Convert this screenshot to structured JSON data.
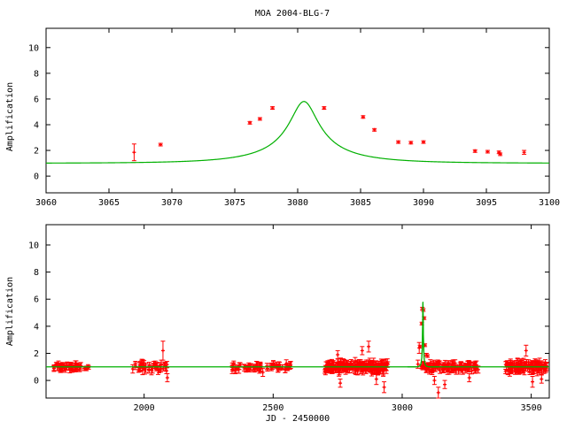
{
  "title": "MOA 2004-BLG-7",
  "colors": {
    "data": "#ff0000",
    "model": "#00b000",
    "axes": "#000000"
  },
  "chart_data": [
    {
      "type": "scatter",
      "panel": "zoom",
      "xlabel": "",
      "ylabel": "Amplification",
      "xlim": [
        3060,
        3100
      ],
      "ylim": [
        -1.3,
        11.5
      ],
      "xticks": [
        "3060",
        "3065",
        "3070",
        "3075",
        "3080",
        "3085",
        "3090",
        "3095",
        "3100"
      ],
      "yticks": [
        "0",
        "2",
        "4",
        "6",
        "8",
        "10"
      ],
      "grid": false,
      "points": [
        {
          "x": 3067.0,
          "y": 1.85,
          "err": 0.65
        },
        {
          "x": 3069.1,
          "y": 2.45,
          "err": 0.1
        },
        {
          "x": 3076.2,
          "y": 4.15,
          "err": 0.1
        },
        {
          "x": 3077.0,
          "y": 4.45,
          "err": 0.1
        },
        {
          "x": 3078.0,
          "y": 5.3,
          "err": 0.1
        },
        {
          "x": 3082.1,
          "y": 5.3,
          "err": 0.1
        },
        {
          "x": 3085.2,
          "y": 4.6,
          "err": 0.1
        },
        {
          "x": 3086.1,
          "y": 3.6,
          "err": 0.1
        },
        {
          "x": 3088.0,
          "y": 2.65,
          "err": 0.1
        },
        {
          "x": 3089.0,
          "y": 2.6,
          "err": 0.1
        },
        {
          "x": 3090.0,
          "y": 2.65,
          "err": 0.1
        },
        {
          "x": 3094.1,
          "y": 1.95,
          "err": 0.1
        },
        {
          "x": 3095.1,
          "y": 1.9,
          "err": 0.1
        },
        {
          "x": 3096.0,
          "y": 1.85,
          "err": 0.1
        },
        {
          "x": 3096.1,
          "y": 1.7,
          "err": 0.1
        },
        {
          "x": 3098.0,
          "y": 1.85,
          "err": 0.15
        }
      ],
      "model": {
        "t0": 3080.5,
        "tE": 6.66,
        "u0": 0.1742
      }
    },
    {
      "type": "scatter",
      "panel": "full",
      "xlabel": "JD - 2450000",
      "ylabel": "Amplification",
      "xlim": [
        1620,
        3570
      ],
      "ylim": [
        -1.3,
        11.5
      ],
      "xticks": [
        "2000",
        "2500",
        "3000",
        "3500"
      ],
      "yticks": [
        "0",
        "2",
        "4",
        "6",
        "8",
        "10"
      ],
      "grid": false,
      "seasons": [
        {
          "from": 1650,
          "to": 1755,
          "n": 50,
          "spread": 0.25,
          "err": 0.25
        },
        {
          "from": 1765,
          "to": 1790,
          "n": 6,
          "spread": 0.15,
          "err": 0.15
        },
        {
          "from": 1950,
          "to": 2090,
          "n": 40,
          "spread": 0.3,
          "err": 0.3
        },
        {
          "from": 2340,
          "to": 2570,
          "n": 70,
          "spread": 0.25,
          "err": 0.25
        },
        {
          "from": 2700,
          "to": 2945,
          "n": 180,
          "spread": 0.35,
          "err": 0.3
        },
        {
          "from": 3075,
          "to": 3295,
          "n": 120,
          "spread": 0.3,
          "err": 0.25
        },
        {
          "from": 3400,
          "to": 3560,
          "n": 100,
          "spread": 0.35,
          "err": 0.3
        }
      ],
      "outliers": [
        {
          "x": 2073,
          "y": 2.2,
          "err": 0.7
        },
        {
          "x": 2090,
          "y": 0.2,
          "err": 0.3
        },
        {
          "x": 2460,
          "y": 0.6,
          "err": 0.3
        },
        {
          "x": 2750,
          "y": 1.9,
          "err": 0.3
        },
        {
          "x": 2760,
          "y": -0.2,
          "err": 0.3
        },
        {
          "x": 2845,
          "y": 2.2,
          "err": 0.3
        },
        {
          "x": 2870,
          "y": 2.5,
          "err": 0.4
        },
        {
          "x": 2900,
          "y": 0.1,
          "err": 0.4
        },
        {
          "x": 2930,
          "y": -0.5,
          "err": 0.4
        },
        {
          "x": 3125,
          "y": 0.0,
          "err": 0.3
        },
        {
          "x": 3140,
          "y": -0.9,
          "err": 0.4
        },
        {
          "x": 3165,
          "y": -0.3,
          "err": 0.3
        },
        {
          "x": 3260,
          "y": 0.2,
          "err": 0.3
        },
        {
          "x": 3480,
          "y": 2.2,
          "err": 0.4
        },
        {
          "x": 3505,
          "y": -0.1,
          "err": 0.4
        },
        {
          "x": 3540,
          "y": 0.1,
          "err": 0.3
        }
      ],
      "event_points": [
        {
          "x": 3061,
          "y": 1.2,
          "err": 0.3
        },
        {
          "x": 3066,
          "y": 2.4,
          "err": 0.4
        },
        {
          "x": 3069,
          "y": 2.5,
          "err": 0.1
        },
        {
          "x": 3076,
          "y": 4.2,
          "err": 0.1
        },
        {
          "x": 3078,
          "y": 5.3,
          "err": 0.1
        },
        {
          "x": 3082,
          "y": 5.2,
          "err": 0.1
        },
        {
          "x": 3085,
          "y": 4.6,
          "err": 0.1
        },
        {
          "x": 3088,
          "y": 2.6,
          "err": 0.1
        },
        {
          "x": 3094,
          "y": 1.9,
          "err": 0.1
        },
        {
          "x": 3098,
          "y": 1.8,
          "err": 0.1
        }
      ],
      "model": {
        "t0": 3080.5,
        "tE": 6.66,
        "u0": 0.1742
      }
    }
  ]
}
